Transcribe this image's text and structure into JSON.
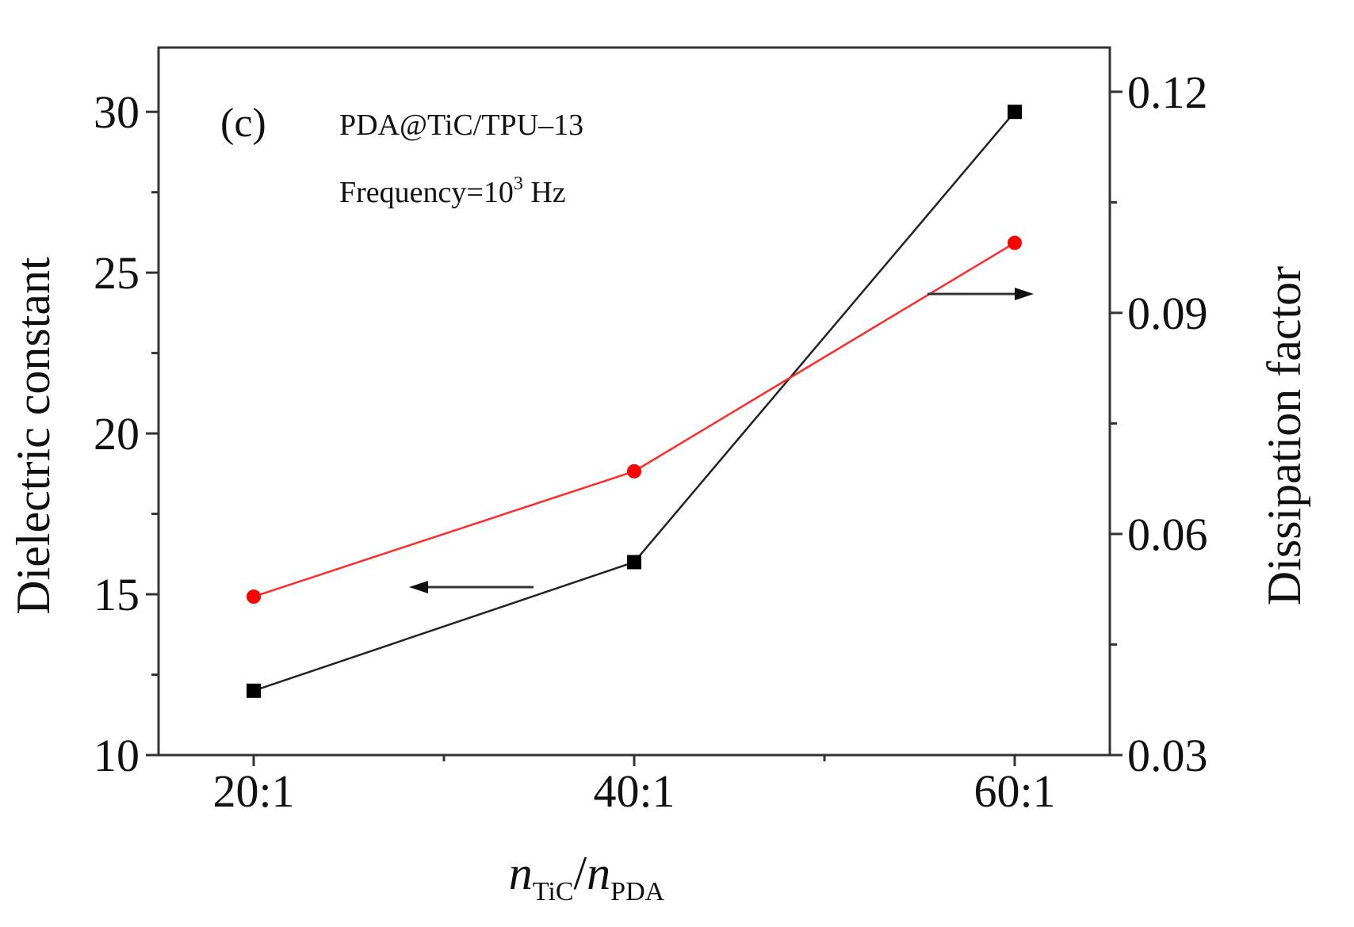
{
  "chart_data": {
    "type": "line",
    "panel_label": "(c)",
    "annotations": {
      "sample": "PDA@TiC/TPU–13",
      "frequency_prefix": "Frequency=10",
      "frequency_exponent": "3",
      "frequency_unit": " Hz"
    },
    "categories": [
      "20:1",
      "40:1",
      "60:1"
    ],
    "xlabel": {
      "main1": "n",
      "sub1": "TiC",
      "sep": "/",
      "main2": "n",
      "sub2": "PDA"
    },
    "ylabel_left": "Dielectric constant",
    "ylabel_right": "Dissipation factor",
    "ylim_left": [
      10,
      32
    ],
    "ylim_right": [
      0.03,
      0.126
    ],
    "yticks_left": [
      "10",
      "15",
      "20",
      "25",
      "30"
    ],
    "yticks_right": [
      "0.03",
      "0.06",
      "0.09",
      "0.12"
    ],
    "series": [
      {
        "name": "Dielectric constant",
        "axis": "left",
        "marker": "square",
        "color": "#000000",
        "values": [
          12,
          16,
          30
        ]
      },
      {
        "name": "Dissipation factor",
        "axis": "right",
        "marker": "circle",
        "color": "#ff0000",
        "values": [
          0.0515,
          0.0685,
          0.0995
        ]
      }
    ],
    "arrows": [
      {
        "points_to": "left",
        "series": "Dielectric constant"
      },
      {
        "points_to": "right",
        "series": "Dissipation factor"
      }
    ]
  }
}
